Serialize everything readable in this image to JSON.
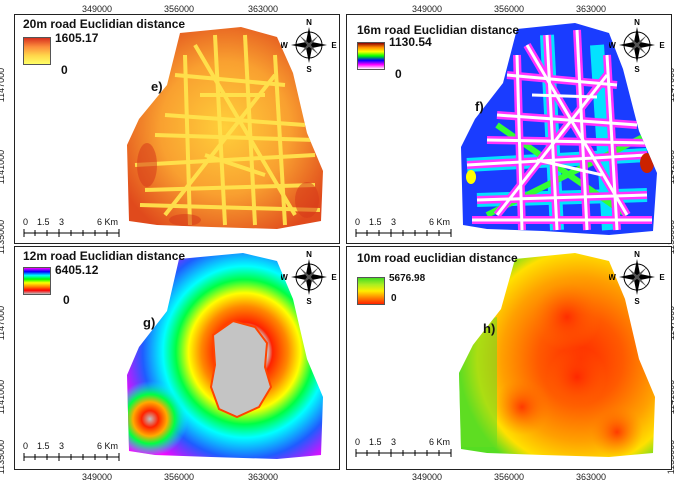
{
  "axes": {
    "x_ticks": [
      "349000",
      "356000",
      "363000"
    ],
    "y_ticks_top": [
      "1147000",
      "1141000",
      "1135000"
    ],
    "y_ticks_bottom": [
      "1147000",
      "1141000",
      "1135000"
    ]
  },
  "panels": [
    {
      "title": "20m road Euclidian distance",
      "legend_max": "1605.17",
      "legend_min": "0",
      "label": "e)",
      "ramp": [
        "#d7301f",
        "#fc8d3c",
        "#ffd54a",
        "#ffff66"
      ]
    },
    {
      "title": "16m road Euclidian distance",
      "legend_max": "1130.54",
      "legend_min": "0",
      "label": "f)",
      "ramp": [
        "#8b0000",
        "#ff8c00",
        "#ffff00",
        "#00ff00",
        "#0000ff",
        "#ff00ff",
        "#ffffff"
      ]
    },
    {
      "title": "12m road Euclidian distance",
      "legend_max": "6405.12",
      "legend_min": "0",
      "label": "g)",
      "ramp": [
        "#ff00ff",
        "#0000ff",
        "#00ffff",
        "#00ff00",
        "#ffff00",
        "#ff8800",
        "#ff0000",
        "#c0c0c0"
      ]
    },
    {
      "title": "10m road euclidian distance",
      "legend_max": "5676.98",
      "legend_min": "0",
      "label": "h)",
      "ramp": [
        "#44dd22",
        "#aaee22",
        "#ffee00",
        "#ff8800",
        "#ff2200"
      ]
    }
  ],
  "compass": {
    "n": "N",
    "s": "S",
    "e": "E",
    "w": "W"
  },
  "scalebar": {
    "labels": [
      "0",
      "1.5",
      "3",
      "6 Km"
    ]
  }
}
